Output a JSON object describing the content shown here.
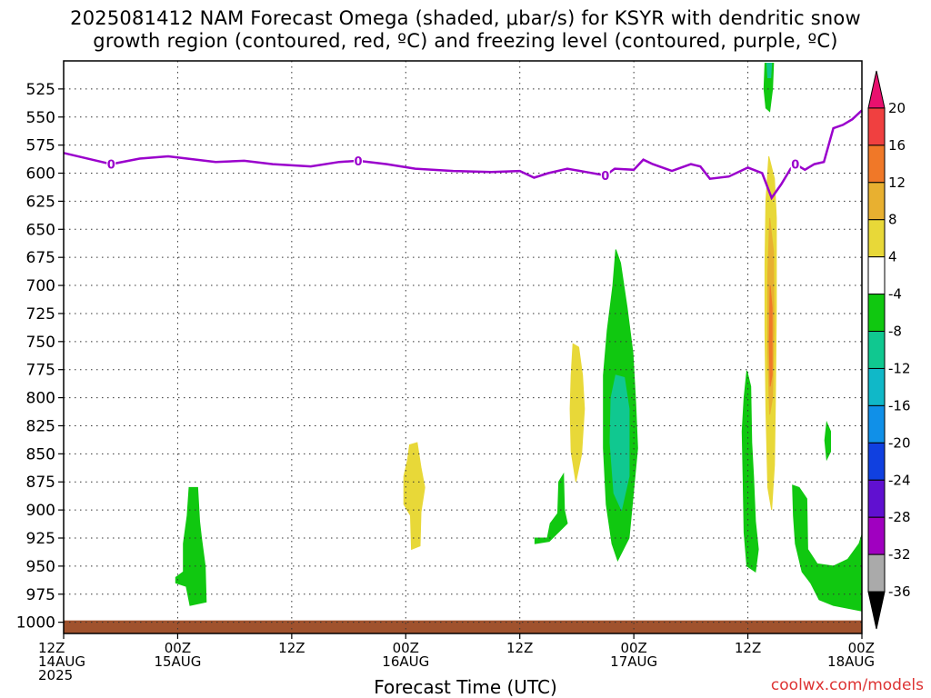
{
  "title": {
    "line1": "2025081412 NAM Forecast Omega (shaded, μbar/s) for KSYR with dendritic snow",
    "line2": "growth region (contoured, red, ºC) and freezing level (contoured, purple, ºC)"
  },
  "credit": "coolwx.com/models",
  "colors": {
    "freezing_line": "#9a00cc",
    "ground": "#a0522d",
    "grid": "#888888"
  },
  "chart_data": {
    "type": "time-height",
    "xlabel": "Forecast Time (UTC)",
    "ylabel": "",
    "x_range_hours": [
      0,
      84
    ],
    "y_range_mb": [
      500,
      1010
    ],
    "y_ticks": [
      525,
      550,
      575,
      600,
      625,
      650,
      675,
      700,
      725,
      750,
      775,
      800,
      825,
      850,
      875,
      900,
      925,
      950,
      975,
      1000
    ],
    "x_ticks": [
      {
        "h": 0,
        "lines": [
          "12Z",
          "14AUG",
          "2025"
        ]
      },
      {
        "h": 12,
        "lines": [
          "00Z",
          "15AUG"
        ]
      },
      {
        "h": 24,
        "lines": [
          "12Z"
        ]
      },
      {
        "h": 36,
        "lines": [
          "00Z",
          "16AUG"
        ]
      },
      {
        "h": 48,
        "lines": [
          "12Z"
        ]
      },
      {
        "h": 60,
        "lines": [
          "00Z",
          "17AUG"
        ]
      },
      {
        "h": 72,
        "lines": [
          "12Z"
        ]
      },
      {
        "h": 84,
        "lines": [
          "00Z",
          "18AUG"
        ]
      }
    ],
    "colorbar": {
      "labels": [
        "20",
        "16",
        "12",
        "8",
        "4",
        "-4",
        "-8",
        "-12",
        "-16",
        "-20",
        "-24",
        "-28",
        "-32",
        "-36"
      ],
      "colors": [
        "#e8106e",
        "#f04040",
        "#f07828",
        "#e8b030",
        "#e8d838",
        "#ffffff",
        "#10c810",
        "#10c890",
        "#10b8c8",
        "#1090e8",
        "#1040e0",
        "#6010d0",
        "#a000c0",
        "#aaaaaa",
        "#000000"
      ]
    },
    "freezing_level": {
      "label": "0",
      "label_hours": [
        5,
        31,
        57,
        77
      ],
      "points": [
        [
          0,
          582
        ],
        [
          3,
          588
        ],
        [
          5,
          592
        ],
        [
          8,
          587
        ],
        [
          11,
          585
        ],
        [
          13,
          587
        ],
        [
          16,
          590
        ],
        [
          19,
          589
        ],
        [
          22,
          592
        ],
        [
          26,
          594
        ],
        [
          29,
          590
        ],
        [
          31,
          589
        ],
        [
          34,
          592
        ],
        [
          37,
          596
        ],
        [
          41,
          598
        ],
        [
          45,
          599
        ],
        [
          48,
          598
        ],
        [
          49.5,
          604
        ],
        [
          51,
          600
        ],
        [
          53,
          596
        ],
        [
          55,
          599
        ],
        [
          57,
          602
        ],
        [
          58,
          596
        ],
        [
          60,
          597
        ],
        [
          61,
          588
        ],
        [
          62,
          592
        ],
        [
          64,
          598
        ],
        [
          66,
          592
        ],
        [
          67,
          594
        ],
        [
          68,
          605
        ],
        [
          70,
          603
        ],
        [
          72,
          595
        ],
        [
          73.5,
          600
        ],
        [
          74.5,
          622
        ],
        [
          75.5,
          610
        ],
        [
          76.5,
          596
        ],
        [
          77,
          592
        ],
        [
          78,
          597
        ],
        [
          79,
          592
        ],
        [
          80,
          590
        ],
        [
          81,
          560
        ],
        [
          82,
          557
        ],
        [
          83,
          552
        ],
        [
          84,
          544
        ]
      ]
    },
    "omega_regions": [
      {
        "level": "-4",
        "color": "#10c810",
        "points": [
          [
            13.2,
            880
          ],
          [
            14.1,
            880
          ],
          [
            14.3,
            910
          ],
          [
            14.5,
            925
          ],
          [
            14.9,
            950
          ],
          [
            15.0,
            982
          ],
          [
            13.3,
            985
          ],
          [
            12.9,
            968
          ],
          [
            11.8,
            965
          ],
          [
            11.8,
            960
          ],
          [
            12.6,
            955
          ],
          [
            12.6,
            930
          ],
          [
            13.0,
            905
          ]
        ]
      },
      {
        "level": "4",
        "color": "#e8d838",
        "points": [
          [
            36.4,
            842
          ],
          [
            37.2,
            840
          ],
          [
            37.6,
            862
          ],
          [
            38.0,
            880
          ],
          [
            37.6,
            902
          ],
          [
            37.5,
            932
          ],
          [
            36.6,
            935
          ],
          [
            36.5,
            905
          ],
          [
            35.8,
            895
          ],
          [
            35.8,
            870
          ],
          [
            36.2,
            855
          ]
        ]
      },
      {
        "level": "-4",
        "color": "#10c810",
        "points": [
          [
            49.6,
            925
          ],
          [
            50.9,
            925
          ],
          [
            51.2,
            912
          ],
          [
            52.0,
            903
          ],
          [
            52.1,
            875
          ],
          [
            52.6,
            868
          ],
          [
            52.7,
            900
          ],
          [
            53.0,
            912
          ],
          [
            51.1,
            928
          ],
          [
            49.6,
            930
          ]
        ]
      },
      {
        "level": "4",
        "color": "#e8d838",
        "points": [
          [
            53.6,
            752
          ],
          [
            54.2,
            755
          ],
          [
            54.6,
            780
          ],
          [
            54.8,
            810
          ],
          [
            54.5,
            850
          ],
          [
            53.9,
            875
          ],
          [
            53.4,
            848
          ],
          [
            53.3,
            810
          ],
          [
            53.4,
            780
          ]
        ]
      },
      {
        "level": "-4",
        "color": "#10c810",
        "points": [
          [
            58.1,
            668
          ],
          [
            58.6,
            680
          ],
          [
            59.3,
            720
          ],
          [
            59.9,
            760
          ],
          [
            60.2,
            805
          ],
          [
            60.4,
            845
          ],
          [
            59.8,
            898
          ],
          [
            59.5,
            925
          ],
          [
            58.3,
            945
          ],
          [
            57.7,
            930
          ],
          [
            57.1,
            895
          ],
          [
            56.8,
            845
          ],
          [
            56.8,
            780
          ],
          [
            57.2,
            740
          ],
          [
            57.8,
            700
          ]
        ]
      },
      {
        "level": "-8",
        "color": "#10c890",
        "points": [
          [
            58.1,
            780
          ],
          [
            59.0,
            782
          ],
          [
            59.5,
            810
          ],
          [
            59.5,
            870
          ],
          [
            58.7,
            900
          ],
          [
            57.9,
            885
          ],
          [
            57.5,
            840
          ],
          [
            57.6,
            800
          ]
        ]
      },
      {
        "level": "-4",
        "color": "#10c810",
        "points": [
          [
            71.9,
            776
          ],
          [
            72.3,
            790
          ],
          [
            72.4,
            840
          ],
          [
            72.6,
            870
          ],
          [
            72.8,
            910
          ],
          [
            73.1,
            935
          ],
          [
            72.8,
            955
          ],
          [
            71.9,
            950
          ],
          [
            71.6,
            920
          ],
          [
            71.5,
            870
          ],
          [
            71.4,
            830
          ],
          [
            71.6,
            800
          ]
        ]
      },
      {
        "level": "-4",
        "color": "#10c810",
        "points": [
          [
            73.8,
            502
          ],
          [
            74.7,
            502
          ],
          [
            74.6,
            525
          ],
          [
            74.3,
            545
          ],
          [
            73.9,
            542
          ],
          [
            73.7,
            525
          ]
        ]
      },
      {
        "level": "-8",
        "color": "#10c890",
        "points": [
          [
            74.0,
            502
          ],
          [
            74.5,
            502
          ],
          [
            74.4,
            515
          ],
          [
            74.1,
            515
          ]
        ]
      },
      {
        "level": "4",
        "color": "#e8d838",
        "points": [
          [
            74.2,
            585
          ],
          [
            74.8,
            605
          ],
          [
            75.0,
            640
          ],
          [
            75.0,
            720
          ],
          [
            74.9,
            800
          ],
          [
            74.8,
            860
          ],
          [
            74.5,
            900
          ],
          [
            74.1,
            880
          ],
          [
            73.9,
            810
          ],
          [
            73.8,
            740
          ],
          [
            73.8,
            680
          ],
          [
            73.9,
            625
          ]
        ]
      },
      {
        "level": "8",
        "color": "#e8b030",
        "points": [
          [
            74.3,
            640
          ],
          [
            74.7,
            670
          ],
          [
            74.75,
            740
          ],
          [
            74.6,
            800
          ],
          [
            74.3,
            815
          ],
          [
            74.1,
            760
          ],
          [
            74.1,
            690
          ]
        ]
      },
      {
        "level": "12",
        "color": "#f07828",
        "points": [
          [
            74.35,
            700
          ],
          [
            74.55,
            720
          ],
          [
            74.55,
            780
          ],
          [
            74.35,
            790
          ],
          [
            74.25,
            750
          ]
        ]
      },
      {
        "level": "-4",
        "color": "#10c810",
        "points": [
          [
            76.7,
            878
          ],
          [
            77.4,
            880
          ],
          [
            78.2,
            890
          ],
          [
            78.3,
            935
          ],
          [
            79.3,
            948
          ],
          [
            81.0,
            950
          ],
          [
            82.5,
            944
          ],
          [
            83.7,
            930
          ],
          [
            84.0,
            922
          ],
          [
            84.0,
            990
          ],
          [
            81.0,
            985
          ],
          [
            79.5,
            980
          ],
          [
            78.6,
            965
          ],
          [
            77.7,
            955
          ],
          [
            77.0,
            930
          ],
          [
            76.8,
            905
          ]
        ]
      },
      {
        "level": "-4",
        "color": "#10c810",
        "points": [
          [
            80.3,
            822
          ],
          [
            80.7,
            830
          ],
          [
            80.7,
            848
          ],
          [
            80.3,
            855
          ],
          [
            80.1,
            838
          ]
        ]
      }
    ]
  }
}
